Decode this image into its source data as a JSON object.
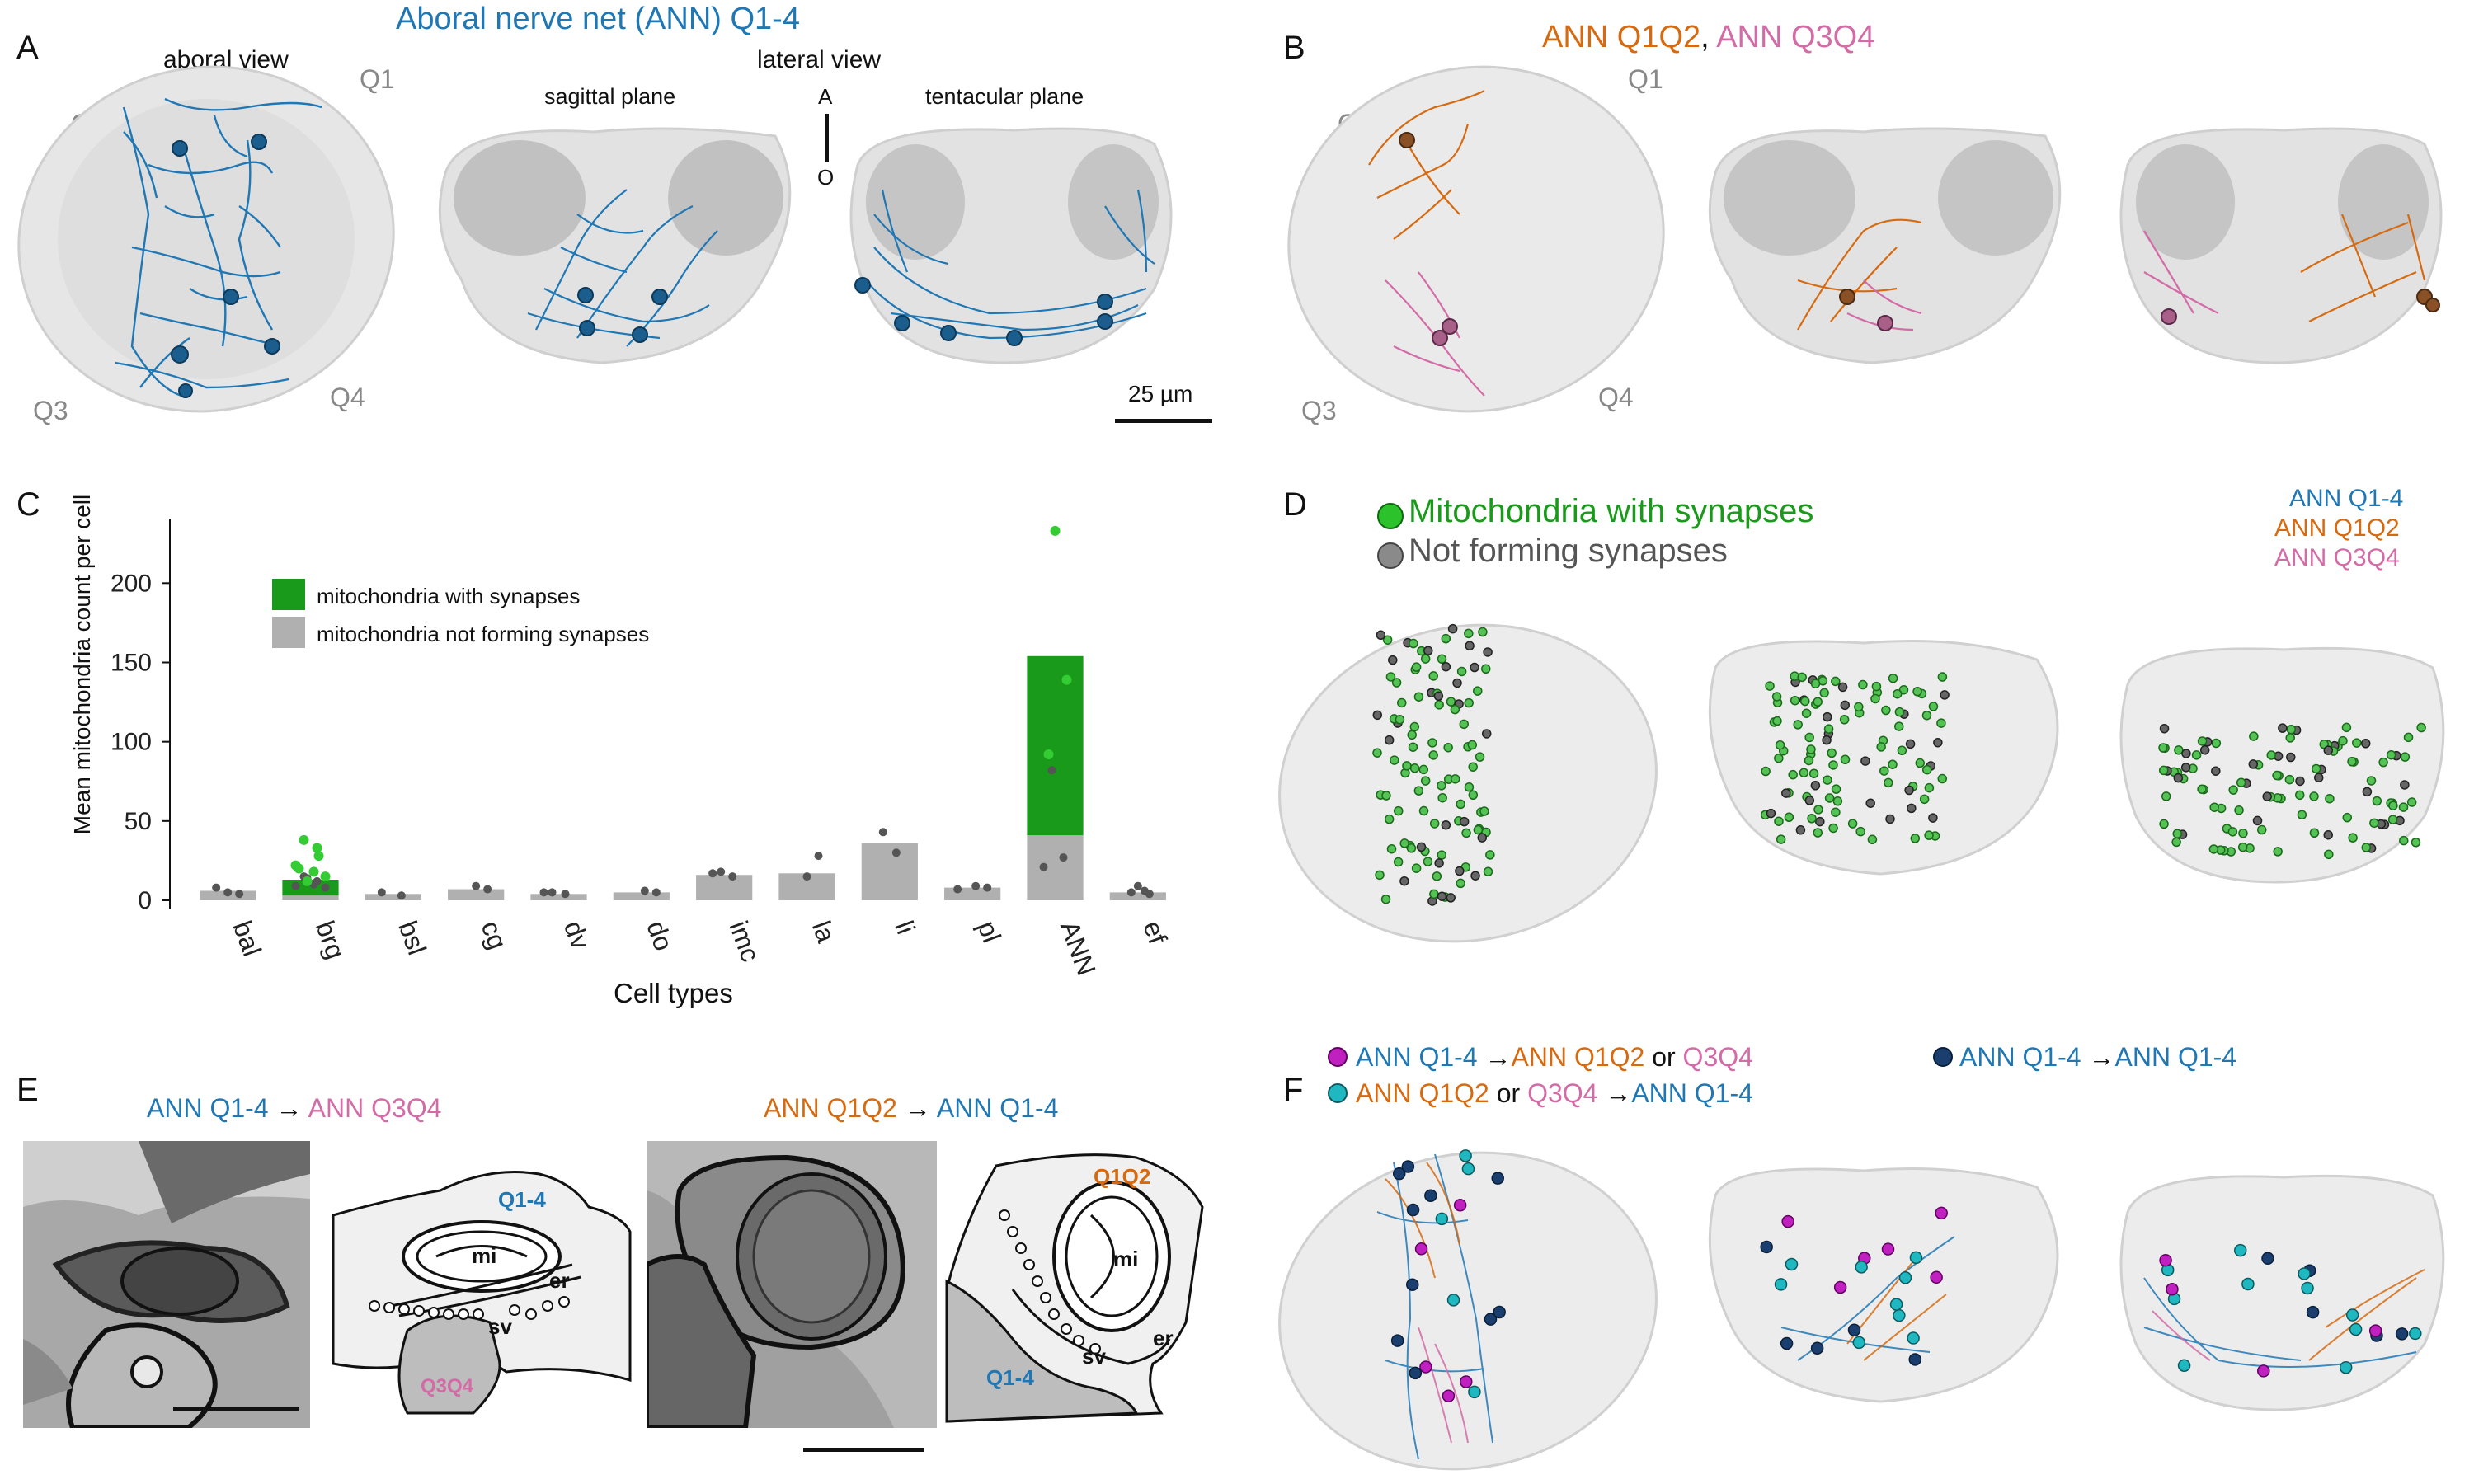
{
  "panel_letters": {
    "A": "A",
    "B": "B",
    "C": "C",
    "D": "D",
    "E": "E",
    "F": "F"
  },
  "panelA": {
    "title": "Aboral nerve net (ANN) Q1-4",
    "aboral_view": "aboral view",
    "lateral_view": "lateral view",
    "sagittal_plane": "sagittal plane",
    "tentacular_plane": "tentacular plane",
    "q1": "Q1",
    "q2": "Q2",
    "q3": "Q3",
    "q4": "Q4",
    "axis_a": "A",
    "axis_o": "O",
    "scale": "25 µm"
  },
  "panelB": {
    "title_part1": "ANN Q1Q2",
    "title_sep": ", ",
    "title_part2": "ANN Q3Q4",
    "q1": "Q1",
    "q2": "Q2",
    "q3": "Q3",
    "q4": "Q4"
  },
  "panelD": {
    "legend_green": "Mitochondria with synapses",
    "legend_grey": "Not forming synapses",
    "key_q14": "ANN Q1-4",
    "key_q1q2": "ANN Q1Q2",
    "key_q3q4": "ANN Q3Q4"
  },
  "panelE": {
    "left_title_a": "ANN Q1-4",
    "arrow": "→",
    "left_title_b": "ANN Q3Q4",
    "right_title_a": "ANN Q1Q2",
    "right_title_b": "ANN Q1-4",
    "s1_q14": "Q1-4",
    "s1_mi": "mi",
    "s1_er": "er",
    "s1_sv": "sv",
    "s1_q3q4": "Q3Q4",
    "s2_q1q2": "Q1Q2",
    "s2_mi": "mi",
    "s2_er": "er",
    "s2_sv": "sv",
    "s2_q14": "Q1-4"
  },
  "panelF": {
    "l1_a": "ANN Q1-4",
    "l1_arrow": "→",
    "l1_b": "ANN Q1Q2",
    "l1_or": "or",
    "l1_c": "Q3Q4",
    "l2_a": "ANN Q1Q2",
    "l2_or": "or",
    "l2_b": "Q3Q4",
    "l2_arrow": "→",
    "l2_c": "ANN Q1-4",
    "l3_a": "ANN Q1-4",
    "l3_arrow": "→",
    "l3_b": "ANN Q1-4"
  },
  "colors": {
    "ann_q14": "#1f77b4",
    "ann_q1q2": "#d66a10",
    "ann_q3q4": "#d36ba6",
    "syn_green": "#1a9a1a",
    "bar_grey": "#b0b0b0",
    "magenta": "#c020c0",
    "cyan": "#20b8c0",
    "dark_blue": "#1a3f6e"
  },
  "chart_data": {
    "type": "bar",
    "ylabel": "Mean mitochondria count per cell",
    "xlabel": "Cell types",
    "ylim": [
      0,
      235
    ],
    "yticks": [
      0,
      50,
      100,
      150,
      200
    ],
    "categories": [
      "bal",
      "brg",
      "bsl",
      "cg",
      "dv",
      "do",
      "imc",
      "la",
      "li",
      "pl",
      "ANN",
      "ef"
    ],
    "series": [
      {
        "name": "mitochondria not forming synapses",
        "color": "#b0b0b0",
        "values": [
          6,
          3,
          4,
          7,
          4,
          5,
          16,
          17,
          36,
          8,
          41,
          5
        ]
      },
      {
        "name": "mitochondria with synapses",
        "color": "#1a9a1a",
        "values": [
          0,
          10,
          0,
          0,
          0,
          0,
          0,
          0,
          0,
          0,
          113,
          0
        ]
      }
    ],
    "points_grey": [
      [
        0,
        8
      ],
      [
        0,
        5
      ],
      [
        0,
        4
      ],
      [
        1,
        15
      ],
      [
        1,
        12
      ],
      [
        1,
        9
      ],
      [
        1,
        8
      ],
      [
        1,
        10
      ],
      [
        1,
        14
      ],
      [
        2,
        3
      ],
      [
        2,
        5
      ],
      [
        3,
        9
      ],
      [
        3,
        7
      ],
      [
        4,
        5
      ],
      [
        4,
        4
      ],
      [
        4,
        5
      ],
      [
        5,
        5
      ],
      [
        5,
        6
      ],
      [
        6,
        18
      ],
      [
        6,
        15
      ],
      [
        6,
        17
      ],
      [
        7,
        15
      ],
      [
        7,
        28
      ],
      [
        8,
        43
      ],
      [
        8,
        30
      ],
      [
        9,
        7
      ],
      [
        9,
        8
      ],
      [
        9,
        9
      ],
      [
        10,
        82
      ],
      [
        10,
        27
      ],
      [
        10,
        21
      ],
      [
        11,
        9
      ],
      [
        11,
        4
      ],
      [
        11,
        5
      ],
      [
        11,
        6
      ]
    ],
    "points_green": [
      [
        1,
        38
      ],
      [
        1,
        33
      ],
      [
        1,
        22
      ],
      [
        1,
        15
      ],
      [
        1,
        18
      ],
      [
        1,
        12
      ],
      [
        1,
        28
      ],
      [
        1,
        20
      ],
      [
        10,
        233
      ],
      [
        10,
        139
      ],
      [
        10,
        92
      ]
    ],
    "legend": "top-left"
  }
}
